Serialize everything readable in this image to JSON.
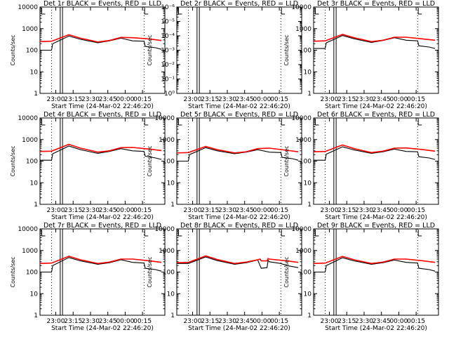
{
  "chart_data": [
    {
      "type": "line",
      "title": "Det 1r BLACK = Events, RED = LLD",
      "xlabel": "Start Time (24-Mar-02 22:46:20)",
      "ylabel": "Counts/sec",
      "yscale": "log",
      "xticks": [
        "23:00",
        "23:15",
        "23:30",
        "23:45",
        "00:00",
        "00:15"
      ],
      "yticks": [
        "1",
        "10",
        "100",
        "1000",
        "10000"
      ],
      "ylim": [
        1,
        10000
      ],
      "series": [
        {
          "color": "#000000",
          "x_minutes": [
            0,
            10,
            11,
            25,
            35,
            50,
            60,
            70,
            80,
            90,
            91,
            100,
            105
          ],
          "values": [
            100,
            100,
            200,
            450,
            320,
            220,
            270,
            360,
            270,
            260,
            150,
            130,
            110
          ]
        },
        {
          "color": "#ff0000",
          "x_minutes": [
            0,
            10,
            25,
            35,
            50,
            60,
            70,
            80,
            95,
            105
          ],
          "values": [
            250,
            260,
            520,
            360,
            240,
            280,
            390,
            380,
            330,
            280
          ]
        }
      ]
    },
    {
      "type": "line",
      "title": "Det 2r BLACK = Events, RED = LLD",
      "xlabel": "Start Time (24-Mar-02 22:46:20)",
      "ylabel": "Counts/sec",
      "yscale": "log",
      "xticks": [
        "23:00",
        "23:15",
        "23:30",
        "23:45",
        "00:00",
        "00:15"
      ],
      "yticks": [
        "10⁰",
        "10⁻¹",
        "10⁻²",
        "10⁻³",
        "10⁻⁴",
        "10⁻⁵",
        "10⁻⁶"
      ],
      "ylim": [
        1e-06,
        1
      ],
      "series": []
    },
    {
      "type": "line",
      "title": "Det 3r BLACK = Events, RED = LLD",
      "xlabel": "Start Time (24-Mar-02 22:46:20)",
      "ylabel": "Counts/sec",
      "yscale": "log",
      "xticks": [
        "23:00",
        "23:15",
        "23:30",
        "23:45",
        "00:00",
        "00:15"
      ],
      "yticks": [
        "1",
        "10",
        "100",
        "1000",
        "10000"
      ],
      "ylim": [
        1,
        10000
      ],
      "series": [
        {
          "color": "#000000",
          "x_minutes": [
            0,
            10,
            11,
            25,
            35,
            50,
            60,
            70,
            80,
            90,
            91,
            100,
            105
          ],
          "values": [
            120,
            120,
            220,
            480,
            340,
            230,
            280,
            380,
            290,
            270,
            160,
            140,
            120
          ]
        },
        {
          "color": "#ff0000",
          "x_minutes": [
            0,
            10,
            25,
            35,
            50,
            60,
            70,
            80,
            95,
            105
          ],
          "values": [
            260,
            270,
            540,
            380,
            250,
            290,
            400,
            400,
            330,
            290
          ]
        }
      ]
    },
    {
      "type": "line",
      "title": "Det 4r BLACK = Events, RED = LLD",
      "xlabel": "Start Time (24-Mar-02 22:46:20)",
      "ylabel": "Counts/sec",
      "yscale": "log",
      "xticks": [
        "23:00",
        "23:15",
        "23:30",
        "23:45",
        "00:00",
        "00:15"
      ],
      "yticks": [
        "1",
        "10",
        "100",
        "1000",
        "10000"
      ],
      "ylim": [
        1,
        10000
      ],
      "series": [
        {
          "color": "#000000",
          "x_minutes": [
            0,
            10,
            11,
            25,
            35,
            50,
            60,
            70,
            80,
            90,
            91,
            100,
            105
          ],
          "values": [
            110,
            110,
            220,
            500,
            340,
            230,
            280,
            380,
            300,
            280,
            170,
            140,
            120
          ]
        },
        {
          "color": "#ff0000",
          "x_minutes": [
            0,
            10,
            25,
            35,
            50,
            60,
            70,
            80,
            95,
            105
          ],
          "values": [
            280,
            290,
            600,
            400,
            260,
            300,
            420,
            430,
            360,
            310
          ]
        }
      ]
    },
    {
      "type": "line",
      "title": "Det 5r BLACK = Events, RED = LLD",
      "xlabel": "Start Time (24-Mar-02 22:46:20)",
      "ylabel": "Counts/sec",
      "yscale": "log",
      "xticks": [
        "23:00",
        "23:15",
        "23:30",
        "23:45",
        "00:00",
        "00:15"
      ],
      "yticks": [
        "1",
        "10",
        "100",
        "1000",
        "10000"
      ],
      "ylim": [
        1,
        10000
      ],
      "series": [
        {
          "color": "#000000",
          "x_minutes": [
            0,
            10,
            11,
            25,
            35,
            50,
            60,
            70,
            80,
            90,
            91,
            100,
            105
          ],
          "values": [
            100,
            100,
            200,
            420,
            300,
            220,
            260,
            340,
            260,
            250,
            150,
            130,
            110
          ]
        },
        {
          "color": "#ff0000",
          "x_minutes": [
            0,
            10,
            25,
            35,
            50,
            60,
            70,
            80,
            95,
            105
          ],
          "values": [
            240,
            250,
            480,
            340,
            240,
            270,
            380,
            400,
            320,
            270
          ]
        }
      ]
    },
    {
      "type": "line",
      "title": "Det 6r BLACK = Events, RED = LLD",
      "xlabel": "Start Time (24-Mar-02 22:46:20)",
      "ylabel": "Counts/sec",
      "yscale": "log",
      "xticks": [
        "23:00",
        "23:15",
        "23:30",
        "23:45",
        "00:00",
        "00:15"
      ],
      "yticks": [
        "1",
        "10",
        "100",
        "1000",
        "10000"
      ],
      "ylim": [
        1,
        10000
      ],
      "series": [
        {
          "color": "#000000",
          "x_minutes": [
            0,
            10,
            11,
            25,
            35,
            50,
            60,
            70,
            80,
            90,
            91,
            100,
            105
          ],
          "values": [
            110,
            110,
            210,
            460,
            330,
            230,
            270,
            360,
            280,
            270,
            160,
            140,
            120
          ]
        },
        {
          "color": "#ff0000",
          "x_minutes": [
            0,
            10,
            25,
            35,
            50,
            60,
            70,
            80,
            95,
            105
          ],
          "values": [
            270,
            280,
            560,
            380,
            250,
            290,
            400,
            410,
            340,
            290
          ]
        }
      ]
    },
    {
      "type": "line",
      "title": "Det 7r BLACK = Events, RED = LLD",
      "xlabel": "Start Time (24-Mar-02 22:46:20)",
      "ylabel": "Counts/sec",
      "yscale": "log",
      "xticks": [
        "23:00",
        "23:15",
        "23:30",
        "23:45",
        "00:00",
        "00:15"
      ],
      "yticks": [
        "1",
        "10",
        "100",
        "1000",
        "10000"
      ],
      "ylim": [
        1,
        10000
      ],
      "series": [
        {
          "color": "#000000",
          "x_minutes": [
            0,
            10,
            11,
            25,
            35,
            50,
            60,
            70,
            80,
            90,
            91,
            100,
            105
          ],
          "values": [
            100,
            100,
            200,
            470,
            330,
            230,
            270,
            370,
            280,
            260,
            150,
            130,
            110
          ]
        },
        {
          "color": "#ff0000",
          "x_minutes": [
            0,
            10,
            25,
            35,
            50,
            60,
            70,
            80,
            95,
            105
          ],
          "values": [
            250,
            260,
            540,
            370,
            250,
            290,
            400,
            400,
            330,
            280
          ]
        }
      ]
    },
    {
      "type": "line",
      "title": "Det 8r BLACK = Events, RED = LLD",
      "xlabel": "Start Time (24-Mar-02 22:46:20)",
      "ylabel": "Counts/sec",
      "yscale": "log",
      "xticks": [
        "23:00",
        "23:15",
        "23:30",
        "23:45",
        "00:00",
        "00:15"
      ],
      "yticks": [
        "1",
        "10",
        "100",
        "1000",
        "10000"
      ],
      "ylim": [
        1,
        10000
      ],
      "series": [
        {
          "color": "#000000",
          "x_minutes": [
            0,
            10,
            11,
            25,
            35,
            50,
            60,
            70,
            72,
            73,
            78,
            79,
            80,
            90,
            95,
            105
          ],
          "values": [
            250,
            250,
            260,
            500,
            340,
            230,
            270,
            360,
            200,
            150,
            160,
            350,
            300,
            250,
            200,
            160
          ]
        },
        {
          "color": "#ff0000",
          "x_minutes": [
            0,
            10,
            25,
            35,
            50,
            60,
            70,
            72,
            73,
            78,
            79,
            80,
            95,
            105
          ],
          "values": [
            270,
            280,
            560,
            380,
            250,
            290,
            370,
            400,
            330,
            330,
            420,
            400,
            330,
            280
          ]
        }
      ]
    },
    {
      "type": "line",
      "title": "Det 9r BLACK = Events, RED = LLD",
      "xlabel": "Start Time (24-Mar-02 22:46:20)",
      "ylabel": "Counts/sec",
      "yscale": "log",
      "xticks": [
        "23:00",
        "23:15",
        "23:30",
        "23:45",
        "00:00",
        "00:15"
      ],
      "yticks": [
        "1",
        "10",
        "100",
        "1000",
        "10000"
      ],
      "ylim": [
        1,
        10000
      ],
      "series": [
        {
          "color": "#000000",
          "x_minutes": [
            0,
            10,
            11,
            25,
            35,
            50,
            60,
            70,
            80,
            90,
            91,
            100,
            105
          ],
          "values": [
            100,
            100,
            200,
            460,
            330,
            230,
            270,
            360,
            280,
            260,
            150,
            130,
            110
          ]
        },
        {
          "color": "#ff0000",
          "x_minutes": [
            0,
            10,
            25,
            35,
            50,
            60,
            70,
            80,
            95,
            105
          ],
          "values": [
            250,
            260,
            530,
            370,
            250,
            290,
            400,
            400,
            330,
            280
          ]
        }
      ]
    }
  ]
}
